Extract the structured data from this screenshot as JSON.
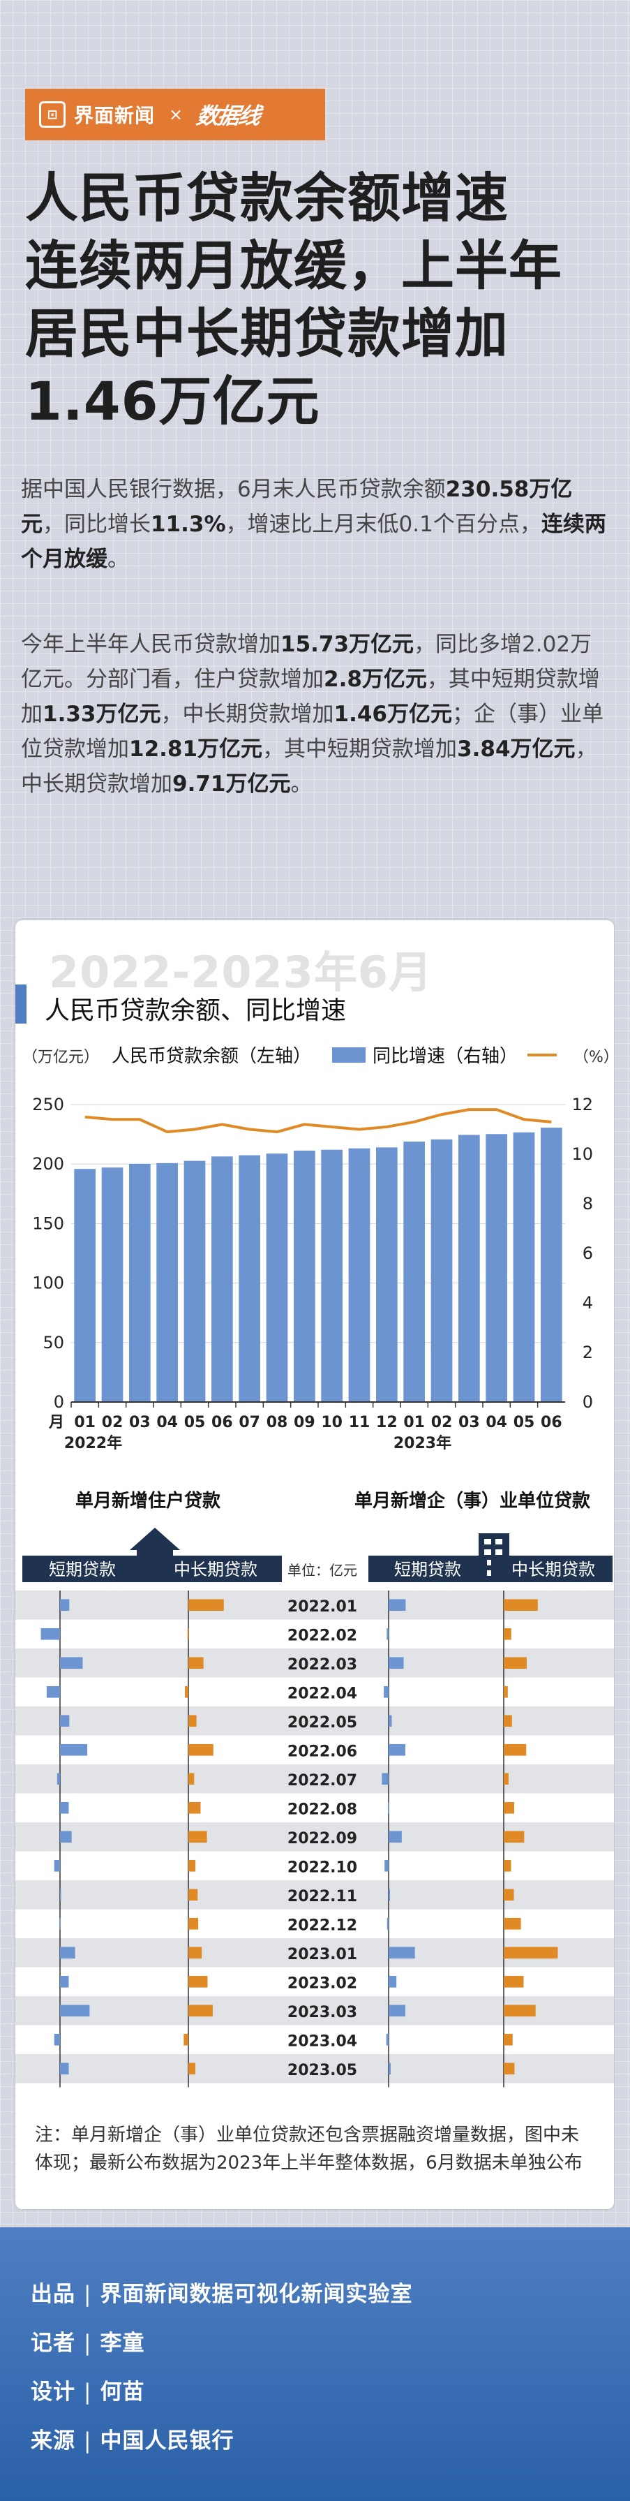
{
  "header": {
    "brand1": "界面新闻",
    "logo_glyph": "⊡",
    "times": "×",
    "brand2": "数据线"
  },
  "headline": [
    "人民币贷款余额增速",
    "连续两月放缓，上半年",
    "居民中长期贷款增加",
    "1.46万亿元"
  ],
  "para1_html": "据中国人民银行数据，6月末人民币贷款余额<b>230.58万亿元</b>，同比增长<b>11.3%</b>，增速比上月末低0.1个百分点，<b>连续两个月放缓</b>。",
  "para2_html": "今年上半年人民币贷款增加<b>15.73万亿元</b>，同比多增2.02万亿元。分部门看，住户贷款增加<b>2.8万亿元</b>，其中短期贷款增加<b>1.33万亿元</b>，中长期贷款增加<b>1.46万亿元</b>；企（事）业单位贷款增加<b>12.81万亿元</b>，其中短期贷款增加<b>3.84万亿元</b>，中长期贷款增加<b>9.71万亿元</b>。",
  "card": {
    "period": "2022-2023年6月",
    "title": "人民币贷款余额、同比增速",
    "unit_left": "（万亿元）",
    "unit_right": "（%）",
    "legend_bar": "人民币贷款余额（左轴）",
    "legend_line": "同比增速（右轴）"
  },
  "chart_data": [
    {
      "type": "bar",
      "title": "人民币贷款余额、同比增速",
      "categories": [
        "01",
        "02",
        "03",
        "04",
        "05",
        "06",
        "07",
        "08",
        "09",
        "10",
        "11",
        "12",
        "01",
        "02",
        "03",
        "04",
        "05",
        "06"
      ],
      "year_labels": [
        "2022年",
        "2023年"
      ],
      "x_prefix": "月",
      "series": [
        {
          "name": "人民币贷款余额（左轴）",
          "axis": "left",
          "type": "bar",
          "values": [
            195.9,
            197.1,
            200.2,
            200.8,
            202.7,
            206.4,
            207.4,
            208.8,
            211.3,
            212.0,
            213.2,
            213.99,
            218.9,
            220.7,
            224.5,
            225.2,
            226.6,
            230.58
          ]
        },
        {
          "name": "同比增速（右轴）",
          "axis": "right",
          "type": "line",
          "values": [
            11.5,
            11.4,
            11.4,
            10.9,
            11.0,
            11.2,
            11.0,
            10.9,
            11.2,
            11.1,
            11.0,
            11.1,
            11.3,
            11.6,
            11.8,
            11.8,
            11.4,
            11.3
          ]
        }
      ],
      "ylim_left": [
        0,
        250
      ],
      "yticks_left": [
        0,
        50,
        100,
        150,
        200,
        250
      ],
      "ylim_right": [
        0,
        12
      ],
      "yticks_right": [
        0,
        2,
        4,
        6,
        8,
        10,
        12
      ],
      "colors": {
        "bar": "#6b94d0",
        "line": "#e08a25"
      }
    },
    {
      "type": "bar",
      "title_left": "单月新增住户贷款",
      "title_right": "单月新增企（事）业单位贷款",
      "unit": "单位：亿元",
      "col_labels": [
        "短期贷款",
        "中长期贷款",
        "短期贷款",
        "中长期贷款"
      ],
      "months": [
        "2022.01",
        "2022.02",
        "2022.03",
        "2022.04",
        "2022.05",
        "2022.06",
        "2022.07",
        "2022.08",
        "2022.09",
        "2022.10",
        "2022.11",
        "2022.12",
        "2023.01",
        "2023.02",
        "2023.03",
        "2023.04",
        "2023.05"
      ],
      "series": [
        {
          "name": "住户短期贷款",
          "values": [
            1600,
            -3300,
            3900,
            -2300,
            1600,
            4700,
            -500,
            1500,
            2000,
            -1000,
            100,
            -100,
            2600,
            1500,
            5100,
            -1000,
            1500
          ]
        },
        {
          "name": "住户中长期贷款",
          "values": [
            6100,
            -150,
            2600,
            -600,
            1400,
            4300,
            1000,
            2100,
            3200,
            1200,
            1600,
            1700,
            2300,
            3300,
            4200,
            -800,
            1200
          ]
        },
        {
          "name": "企（事）业短期贷款",
          "values": [
            10900,
            -1200,
            9600,
            -3100,
            2000,
            10700,
            -4300,
            -400,
            8400,
            -2600,
            900,
            -1000,
            16800,
            5000,
            10700,
            -1500,
            1300
          ]
        },
        {
          "name": "企（事）业中长期贷款",
          "values": [
            21800,
            4800,
            14700,
            2600,
            5300,
            14400,
            3100,
            6700,
            13100,
            4700,
            6500,
            11000,
            34600,
            12700,
            20400,
            5700,
            6900
          ]
        }
      ],
      "colors": {
        "short": "#6b94d0",
        "long": "#e08a25"
      }
    }
  ],
  "note": "注：单月新增企（事）业单位贷款还包含票据融资增量数据，图中未体现；最新公布数据为2023年上半年整体数据，6月数据未单独公布",
  "credits": [
    {
      "k": "出品",
      "v": "界面新闻数据可视化新闻实验室"
    },
    {
      "k": "记者",
      "v": "李童"
    },
    {
      "k": "设计",
      "v": "何苗"
    },
    {
      "k": "来源",
      "v": "中国人民银行"
    }
  ],
  "separator": "|"
}
